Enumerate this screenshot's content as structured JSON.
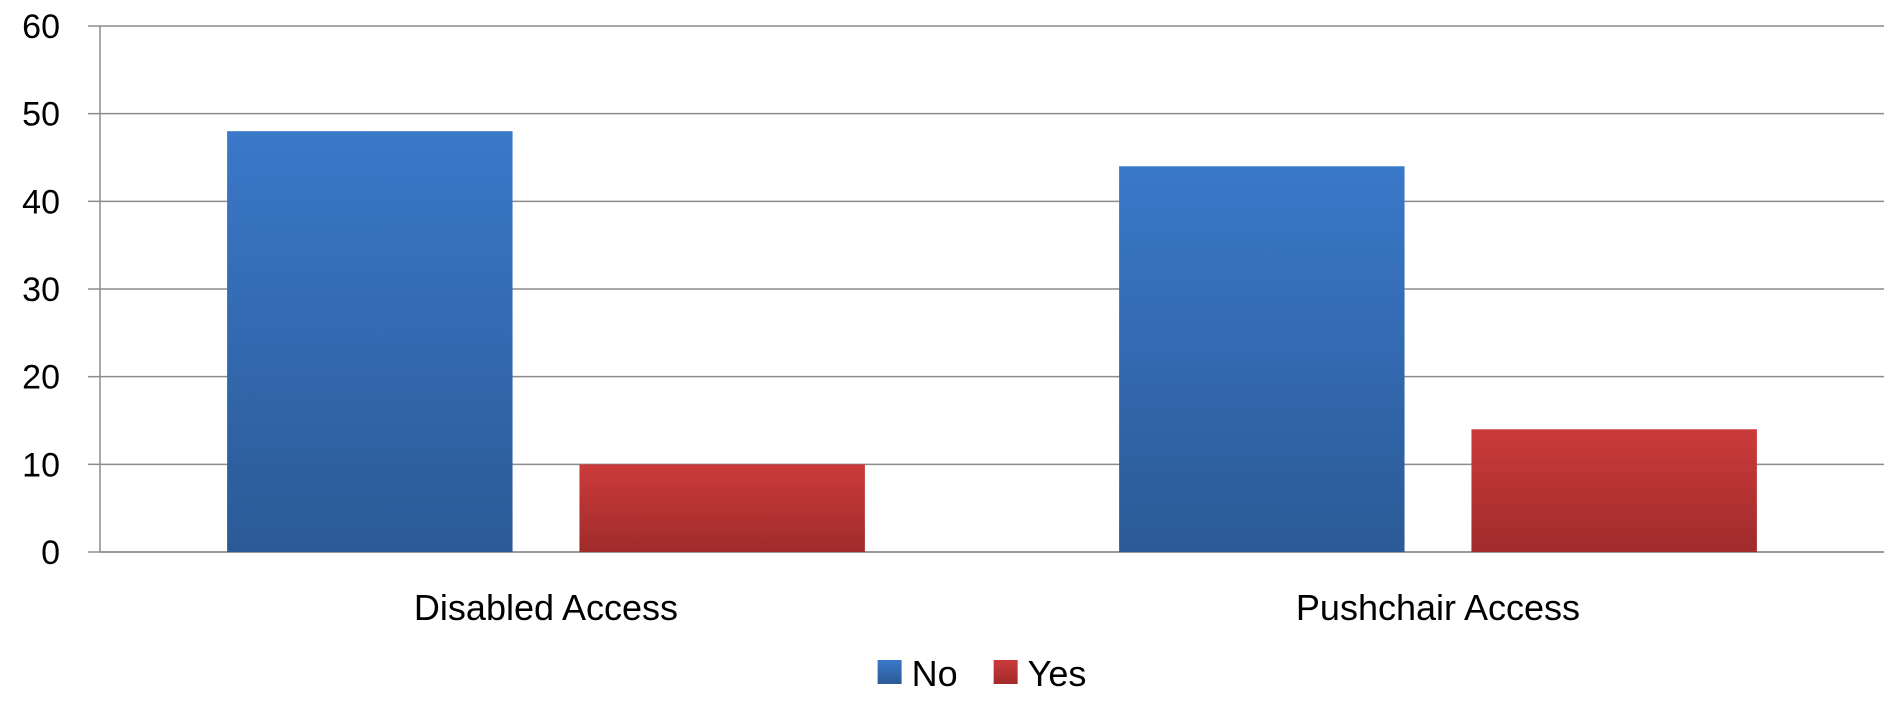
{
  "chart_data": {
    "type": "bar",
    "title": "",
    "xlabel": "",
    "ylabel": "",
    "categories": [
      "Disabled Access",
      "Pushchair Access"
    ],
    "series": [
      {
        "name": "No",
        "values": [
          48,
          44
        ],
        "color": "#3a78c9",
        "color_dark": "#2b5a96"
      },
      {
        "name": "Yes",
        "values": [
          10,
          14
        ],
        "color": "#cc3b3b",
        "color_dark": "#a02b2b"
      }
    ],
    "ylim": [
      0,
      60
    ],
    "yticks": [
      "0",
      "10",
      "20",
      "30",
      "40",
      "50",
      "60"
    ],
    "grid": true,
    "legend_position": "bottom"
  }
}
